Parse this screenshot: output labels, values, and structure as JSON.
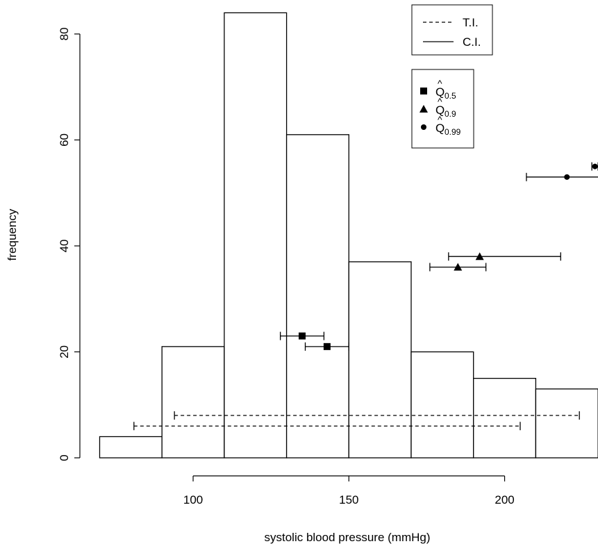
{
  "chart_data": {
    "type": "bar",
    "xlabel": "systolic blood pressure (mmHg)",
    "ylabel": "frequency",
    "xlim": [
      70,
      230
    ],
    "ylim": [
      0,
      84
    ],
    "xticks": [
      100,
      150,
      200
    ],
    "yticks": [
      0,
      20,
      40,
      60,
      80
    ],
    "histogram": {
      "bins": [
        {
          "from": 70,
          "to": 90,
          "count": 4
        },
        {
          "from": 90,
          "to": 110,
          "count": 21
        },
        {
          "from": 110,
          "to": 130,
          "count": 84
        },
        {
          "from": 130,
          "to": 150,
          "count": 61
        },
        {
          "from": 150,
          "to": 170,
          "count": 37
        },
        {
          "from": 170,
          "to": 190,
          "count": 20
        },
        {
          "from": 190,
          "to": 210,
          "count": 15
        },
        {
          "from": 210,
          "to": 230,
          "count": 13
        }
      ]
    },
    "intervals": [
      {
        "kind": "T.I.",
        "style": "dashed",
        "y": 6,
        "lower": 81,
        "upper": 205
      },
      {
        "kind": "T.I.",
        "style": "dashed",
        "y": 8,
        "lower": 94,
        "upper": 224
      },
      {
        "kind": "C.I.",
        "style": "solid",
        "marker": "square",
        "y": 23,
        "estimate": 135,
        "lower": 128,
        "upper": 142
      },
      {
        "kind": "C.I.",
        "style": "solid",
        "marker": "square",
        "y": 21,
        "estimate": 143,
        "lower": 136,
        "upper": 150
      },
      {
        "kind": "C.I.",
        "style": "solid",
        "marker": "triangle",
        "y": 38,
        "estimate": 192,
        "lower": 182,
        "upper": 218
      },
      {
        "kind": "C.I.",
        "style": "solid",
        "marker": "triangle",
        "y": 36,
        "estimate": 185,
        "lower": 176,
        "upper": 194
      },
      {
        "kind": "C.I.",
        "style": "solid",
        "marker": "circle",
        "y": 53,
        "estimate": 220,
        "lower": 207,
        "upper": 232
      },
      {
        "kind": "C.I.",
        "style": "solid",
        "marker": "circle",
        "y": 55,
        "estimate": 229,
        "lower": 228,
        "upper": 230
      }
    ],
    "legend_lines": {
      "position": "top-right",
      "items": [
        {
          "label": "T.I.",
          "style": "dashed"
        },
        {
          "label": "C.I.",
          "style": "solid"
        }
      ]
    },
    "legend_markers": {
      "position": "top-right",
      "items": [
        {
          "marker": "square",
          "label": "Q",
          "subscript": "0.5"
        },
        {
          "marker": "triangle",
          "label": "Q",
          "subscript": "0.9"
        },
        {
          "marker": "circle",
          "label": "Q",
          "subscript": "0.99"
        }
      ]
    },
    "colors": {
      "ink": "#000000",
      "background": "#ffffff"
    }
  }
}
